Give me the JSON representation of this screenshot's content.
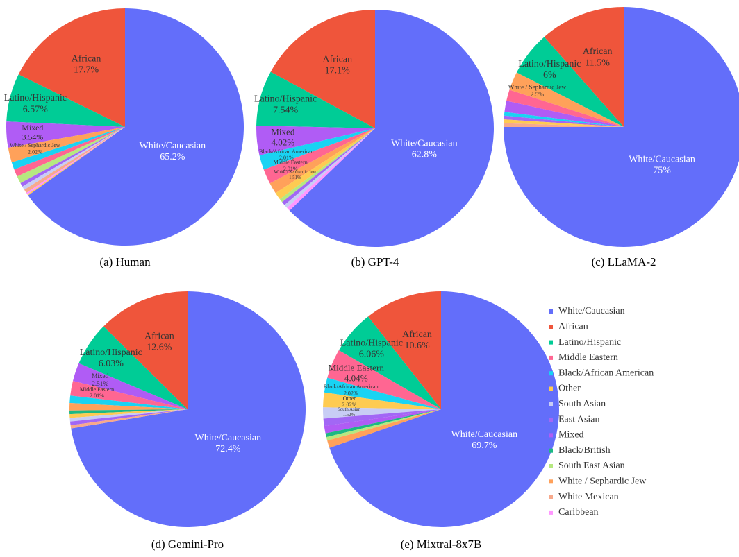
{
  "chart_data": [
    {
      "type": "pie",
      "title": "(a) Human",
      "categories": [
        "White/Caucasian",
        "African",
        "Latino/Hispanic",
        "Mixed",
        "White / Sephardic Jew",
        "Black/African American",
        "Middle Eastern",
        "South East Asian",
        "East Asian",
        "South Asian",
        "White Mexican",
        "Caribbean",
        "Other"
      ],
      "values": [
        65.2,
        17.7,
        6.57,
        3.54,
        2.02,
        1.01,
        1.01,
        1.01,
        0.51,
        0.51,
        0.51,
        0.25,
        0.16
      ],
      "value_labels": [
        "65.2%",
        "17.7%",
        "6.57%",
        "3.54%",
        "2.02%",
        null,
        null,
        null,
        null,
        null,
        null,
        null,
        null
      ]
    },
    {
      "type": "pie",
      "title": "(b) GPT-4",
      "categories": [
        "White/Caucasian",
        "African",
        "Latino/Hispanic",
        "Mixed",
        "Black/African American",
        "Middle Eastern",
        "White / Sephardic Jew",
        "Other",
        "South East Asian",
        "East Asian",
        "South Asian",
        "Caribbean"
      ],
      "values": [
        62.8,
        17.1,
        7.54,
        4.02,
        2.01,
        2.01,
        1.51,
        1.0,
        0.5,
        0.5,
        0.5,
        0.51
      ],
      "value_labels": [
        "62.8%",
        "17.1%",
        "7.54%",
        "4.02%",
        "2.01%",
        "2.01%",
        "1.51%",
        null,
        null,
        null,
        null,
        null
      ]
    },
    {
      "type": "pie",
      "title": "(c) LLaMA-2",
      "categories": [
        "White/Caucasian",
        "African",
        "Latino/Hispanic",
        "White / Sephardic Jew",
        "Middle Eastern",
        "Mixed",
        "Black/African American",
        "East Asian",
        "Other",
        "White Mexican"
      ],
      "values": [
        75,
        11.5,
        6,
        2.5,
        1.5,
        1.5,
        0.5,
        0.5,
        0.5,
        0.5
      ],
      "value_labels": [
        "75%",
        "11.5%",
        "6%",
        "2.5%",
        null,
        null,
        null,
        null,
        null,
        null
      ]
    },
    {
      "type": "pie",
      "title": "(d) Gemini-Pro",
      "categories": [
        "White/Caucasian",
        "African",
        "Latino/Hispanic",
        "Mixed",
        "Middle Eastern",
        "Black/African American",
        "White / Sephardic Jew",
        "Black/British",
        "Other",
        "South Asian",
        "East Asian",
        "White Mexican"
      ],
      "values": [
        72.4,
        12.6,
        6.03,
        2.51,
        2.01,
        1.01,
        1.01,
        0.5,
        0.5,
        0.5,
        0.5,
        0.43
      ],
      "value_labels": [
        "72.4%",
        "12.6%",
        "6.03%",
        "2.51%",
        "2.01%",
        null,
        null,
        null,
        null,
        null,
        null,
        null
      ]
    },
    {
      "type": "pie",
      "title": "(e) Mixtral-8x7B",
      "categories": [
        "White/Caucasian",
        "African",
        "Latino/Hispanic",
        "Middle Eastern",
        "Black/African American",
        "Other",
        "South Asian",
        "East Asian",
        "Mixed",
        "Black/British",
        "South East Asian",
        "White / Sephardic Jew"
      ],
      "values": [
        69.7,
        10.6,
        6.06,
        4.04,
        2.02,
        2.02,
        1.52,
        1.01,
        1.01,
        0.51,
        0.5,
        1.01
      ],
      "value_labels": [
        "69.7%",
        "10.6%",
        "6.06%",
        "4.04%",
        "2.02%",
        "2.02%",
        "1.52%",
        null,
        null,
        null,
        null,
        null
      ]
    }
  ],
  "legend": {
    "categories": [
      "White/Caucasian",
      "African",
      "Latino/Hispanic",
      "Middle Eastern",
      "Black/African American",
      "Other",
      "South Asian",
      "East Asian",
      "Mixed",
      "Black/British",
      "South East Asian",
      "White / Sephardic Jew",
      "White Mexican",
      "Caribbean"
    ],
    "colors": [
      "#636efa",
      "#ef553b",
      "#00cc96",
      "#ff6692",
      "#19d3f3",
      "#fecb52",
      "#c8cdf5",
      "#a267f5",
      "#b05cf5",
      "#1cb883",
      "#b6e880",
      "#ffa15a",
      "#f7a98c",
      "#ff97ff"
    ]
  }
}
